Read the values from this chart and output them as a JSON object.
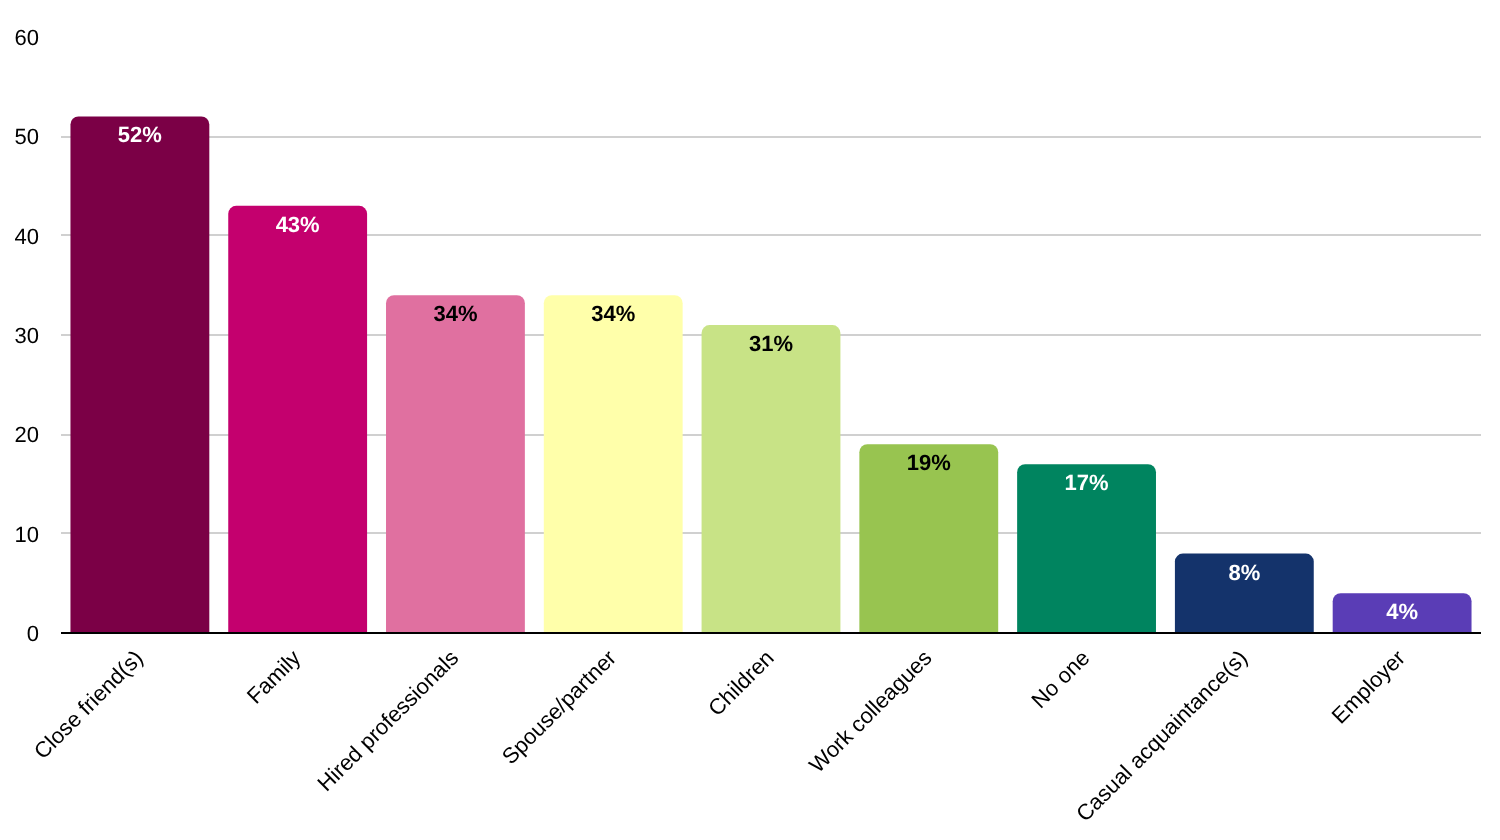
{
  "chart_data": {
    "type": "bar",
    "categories": [
      "Close friend(s)",
      "Family",
      "Hired professionals",
      "Spouse/partner",
      "Children",
      "Work colleagues",
      "No one",
      "Casual acquaintance(s)",
      "Employer"
    ],
    "values": [
      52,
      43,
      34,
      34,
      31,
      19,
      17,
      8,
      4
    ],
    "value_labels": [
      "52%",
      "43%",
      "34%",
      "34%",
      "31%",
      "19%",
      "17%",
      "8%",
      "4%"
    ],
    "colors": [
      "#7b0046",
      "#c4006e",
      "#e070a0",
      "#ffffaa",
      "#c8e386",
      "#98c450",
      "#00845f",
      "#14336b",
      "#5a3db6"
    ],
    "ylim": [
      0,
      60
    ],
    "yticks": [
      0,
      10,
      20,
      30,
      40,
      50,
      60
    ],
    "grid": "y"
  }
}
